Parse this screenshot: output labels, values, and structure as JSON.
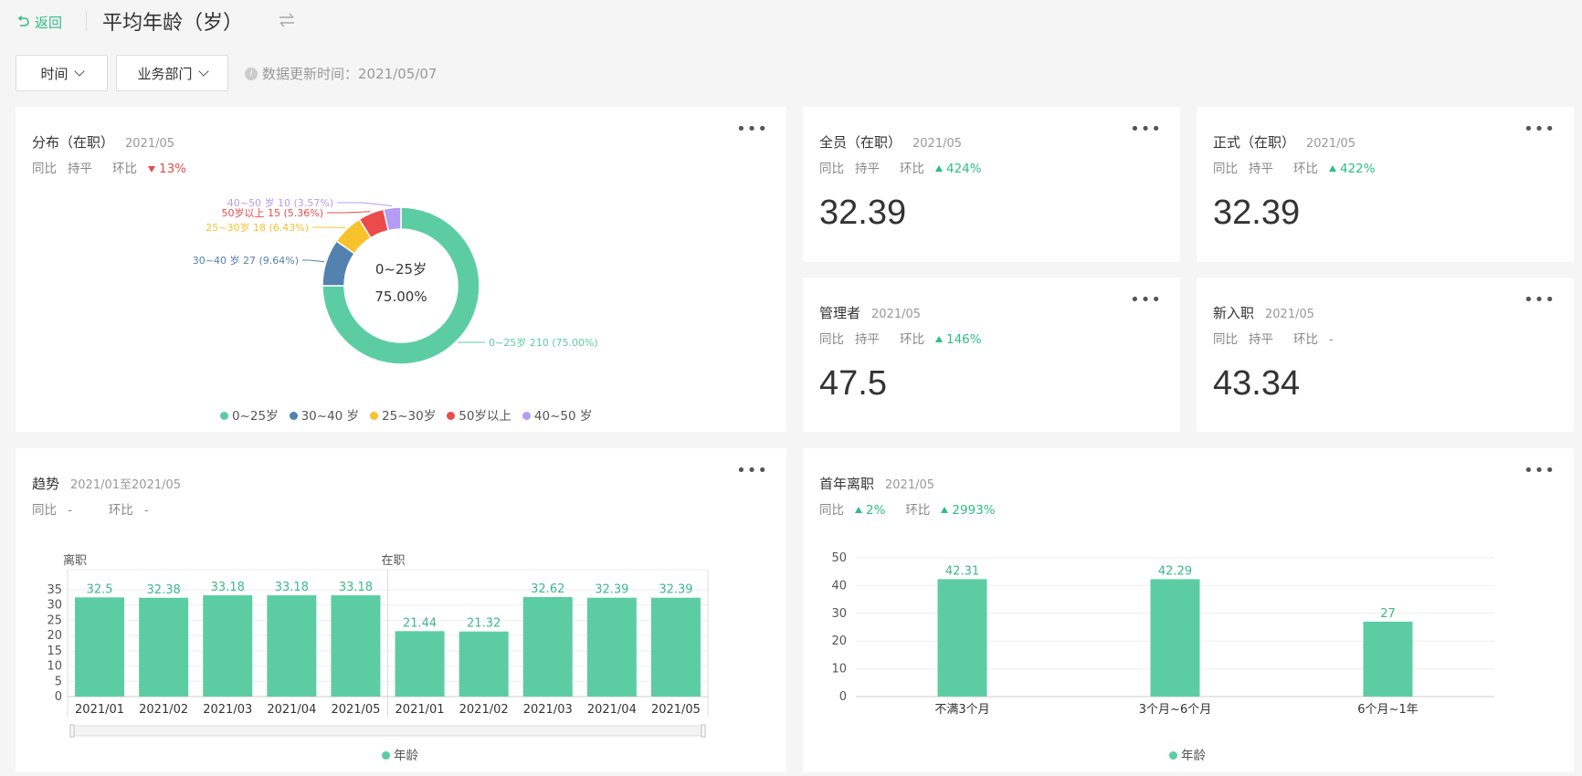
{
  "header": {
    "back_label": "返回",
    "title": "平均年龄（岁）"
  },
  "filters": {
    "time_label": "时间",
    "dept_label": "业务部门",
    "update_text": "数据更新时间：2021/05/07"
  },
  "labels": {
    "yoy": "同比",
    "mom": "环比"
  },
  "cards": {
    "distribution": {
      "title": "分布（在职）",
      "date": "2021/05",
      "yoy": "持平",
      "mom": "13%",
      "center_label": "0~25岁",
      "center_value": "75.00%"
    },
    "all_staff": {
      "title": "全员（在职）",
      "date": "2021/05",
      "yoy": "持平",
      "mom": "424%",
      "value": "32.39"
    },
    "formal": {
      "title": "正式（在职）",
      "date": "2021/05",
      "yoy": "持平",
      "mom": "422%",
      "value": "32.39"
    },
    "manager": {
      "title": "管理者",
      "date": "2021/05",
      "yoy": "持平",
      "mom": "146%",
      "value": "47.5"
    },
    "new_hire": {
      "title": "新入职",
      "date": "2021/05",
      "yoy": "持平",
      "mom": "-",
      "value": "43.34"
    },
    "trend": {
      "title": "趋势",
      "date": "2021/01至2021/05",
      "yoy": "-",
      "mom": "-"
    },
    "first_year": {
      "title": "首年离职",
      "date": "2021/05",
      "yoy": "2%",
      "mom": "2993%"
    }
  },
  "chart_data": [
    {
      "type": "pie",
      "series": [
        {
          "name": "0~25岁",
          "value": 210,
          "percent": "75.00%",
          "label": "0~25岁 210 (75.00%)",
          "color": "#5ccda2"
        },
        {
          "name": "30~40 岁",
          "value": 27,
          "percent": "9.64%",
          "label": "30~40 岁 27 (9.64%)",
          "color": "#5282ad"
        },
        {
          "name": "25~30岁",
          "value": 18,
          "percent": "6.43%",
          "label": "25~30岁 18 (6.43%)",
          "color": "#f8c22c"
        },
        {
          "name": "50岁以上",
          "value": 15,
          "percent": "5.36%",
          "label": "50岁以上 15 (5.36%)",
          "color": "#ec4b4b"
        },
        {
          "name": "40~50 岁",
          "value": 10,
          "percent": "3.57%",
          "label": "40~50 岁 10 (3.57%)",
          "color": "#b49cf5"
        }
      ],
      "legend": "bottom"
    },
    {
      "type": "bar",
      "groups": [
        "离职",
        "在职"
      ],
      "categories": [
        "2021/01",
        "2021/02",
        "2021/03",
        "2021/04",
        "2021/05",
        "2021/01",
        "2021/02",
        "2021/03",
        "2021/04",
        "2021/05"
      ],
      "values": [
        32.5,
        32.38,
        33.18,
        33.18,
        33.18,
        21.44,
        21.32,
        32.62,
        32.39,
        32.39
      ],
      "yticks": [
        0,
        5,
        10,
        15,
        20,
        25,
        30,
        35
      ],
      "ylim": [
        0,
        35
      ],
      "legend": [
        "年龄"
      ],
      "color": "#5ccda2"
    },
    {
      "type": "bar",
      "categories": [
        "不满3个月",
        "3个月~6个月",
        "6个月~1年"
      ],
      "values": [
        42.31,
        42.29,
        27
      ],
      "yticks": [
        0,
        10,
        20,
        30,
        40,
        50
      ],
      "ylim": [
        0,
        50
      ],
      "legend": [
        "年龄"
      ],
      "color": "#5ccda2"
    }
  ]
}
